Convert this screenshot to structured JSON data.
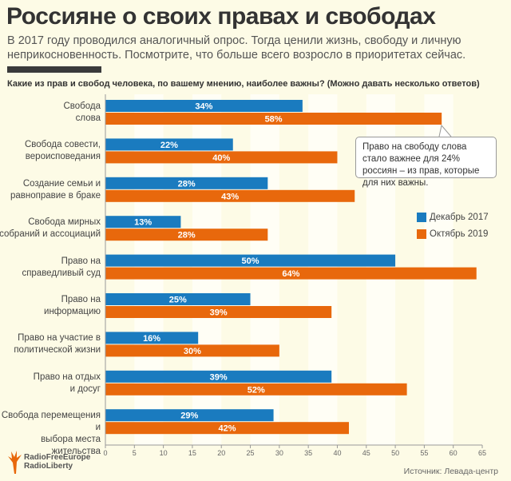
{
  "title": "Россияне о своих правах и свободах",
  "subtitle": "В 2017 году проводился аналогичный опрос. Тогда ценили жизнь, свободу и личную неприкосновенность. Посмотрите, что больше всего возросло в приоритетах сейчас.",
  "question": "Какие из прав и свобод человека, по вашему мнению, наиболее важны? (Можно давать несколько ответов)",
  "callout": "Право на свободу слова стало важнее для 24% россиян – из прав, которые для них важны.",
  "source": "Источник: Левада-центр",
  "logo": {
    "line1": "RadioFreeEurope",
    "line2": "RadioLiberty"
  },
  "colors": {
    "dec2017": "#1a7bbf",
    "oct2019": "#e8680c",
    "background": "#fdfbe6"
  },
  "chart_data": {
    "type": "bar",
    "orientation": "horizontal",
    "categories": [
      "Свобода слова",
      "Свобода совести, вероисповедания",
      "Создание семьи и равноправие в браке",
      "Свобода мирных собраний и ассоциаций",
      "Право на справедливый суд",
      "Право на информацию",
      "Право на участие в политической жизни",
      "Право на отдых и досуг",
      "Свобода перемещения и выбора места жительства"
    ],
    "category_lines": [
      [
        "Свобода",
        "слова"
      ],
      [
        "Свобода совести,",
        "вероисповедания"
      ],
      [
        "Создание семьи и",
        "равноправие в браке"
      ],
      [
        "Свобода мирных",
        "собраний и ассоциаций"
      ],
      [
        "Право на",
        "справедливый суд"
      ],
      [
        "Право на",
        "информацию"
      ],
      [
        "Право на участие в",
        "политической жизни"
      ],
      [
        "Право на отдых",
        "и досуг"
      ],
      [
        "Свобода перемещения и",
        "выбора места жительства"
      ]
    ],
    "series": [
      {
        "name": "Декабрь 2017",
        "values": [
          34,
          22,
          28,
          13,
          50,
          25,
          16,
          39,
          29
        ]
      },
      {
        "name": "Октябрь 2019",
        "values": [
          58,
          40,
          43,
          28,
          64,
          39,
          30,
          52,
          42
        ]
      }
    ],
    "xlim": [
      0,
      65
    ],
    "xticks": [
      0,
      5,
      10,
      15,
      20,
      25,
      30,
      35,
      40,
      45,
      50,
      55,
      60,
      65
    ],
    "value_suffix": "%",
    "legend": "right",
    "grid": "alternating vertical bands every 5"
  }
}
